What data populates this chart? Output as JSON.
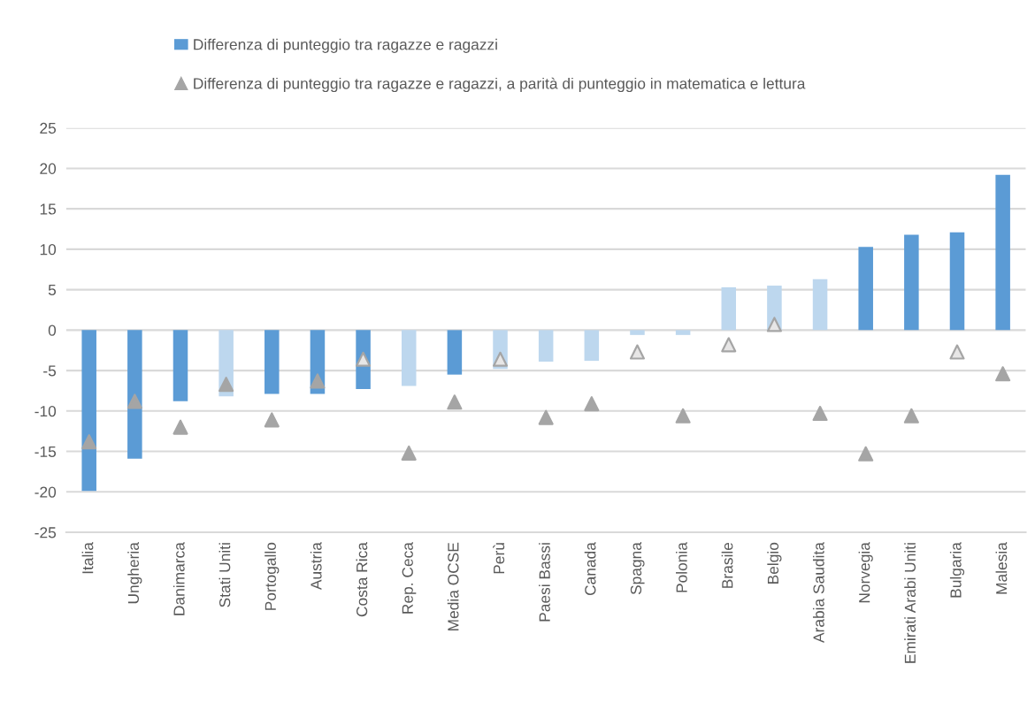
{
  "chart_data": {
    "type": "bar",
    "categories": [
      "Italia",
      "Ungheria",
      "Danimarca",
      "Stati Uniti",
      "Portogallo",
      "Austria",
      "Costa Rica",
      "Rep. Ceca",
      "Media OCSE",
      "Perù",
      "Paesi Bassi",
      "Canada",
      "Spagna",
      "Polonia",
      "Brasile",
      "Belgio",
      "Arabia Saudita",
      "Norvegia",
      "Emirati Arabi Uniti",
      "Bulgaria",
      "Malesia"
    ],
    "series": [
      {
        "name": "Differenza di punteggio tra ragazze e ragazzi",
        "color": "#5b9bd5",
        "colors": [
          "#5b9bd5",
          "#5b9bd5",
          "#5b9bd5",
          "#bdd7ee",
          "#5b9bd5",
          "#5b9bd5",
          "#5b9bd5",
          "#bdd7ee",
          "#5b9bd5",
          "#bdd7ee",
          "#bdd7ee",
          "#bdd7ee",
          "#bdd7ee",
          "#bdd7ee",
          "#bdd7ee",
          "#bdd7ee",
          "#bdd7ee",
          "#5b9bd5",
          "#5b9bd5",
          "#5b9bd5",
          "#5b9bd5"
        ],
        "values": [
          -19.9,
          -15.9,
          -8.8,
          -8.2,
          -7.9,
          -7.9,
          -7.3,
          -6.9,
          -5.5,
          -4.8,
          -3.9,
          -3.8,
          -0.6,
          -0.6,
          5.3,
          5.5,
          6.3,
          10.3,
          11.8,
          12.1,
          19.2
        ]
      },
      {
        "name": "Differenza di punteggio tra ragazze e ragazzi, a parità di punteggio in matematica e lettura",
        "type": "scatter",
        "marker": "triangle",
        "color": "#a5a5a5",
        "colors": [
          "#a5a5a5",
          "#a5a5a5",
          "#a5a5a5",
          "#a5a5a5",
          "#a5a5a5",
          "#a5a5a5",
          "#e7e6e6",
          "#a5a5a5",
          "#a5a5a5",
          "#e7e6e6",
          "#a5a5a5",
          "#a5a5a5",
          "#e7e6e6",
          "#a5a5a5",
          "#e7e6e6",
          "#e7e6e6",
          "#a5a5a5",
          "#a5a5a5",
          "#a5a5a5",
          "#e7e6e6",
          "#a5a5a5"
        ],
        "values": [
          -13.8,
          -8.8,
          -12.0,
          -6.7,
          -11.1,
          -6.3,
          -3.6,
          -15.2,
          -8.9,
          -3.6,
          -10.8,
          -9.1,
          -2.7,
          -10.6,
          -1.8,
          0.7,
          -10.3,
          -15.3,
          -10.6,
          -2.7,
          -5.4
        ]
      }
    ],
    "ylim": [
      -25,
      25
    ],
    "yticks": [
      -25,
      -20,
      -15,
      -10,
      -5,
      0,
      5,
      10,
      15,
      20,
      25
    ],
    "grid": "y",
    "legend": "top"
  }
}
